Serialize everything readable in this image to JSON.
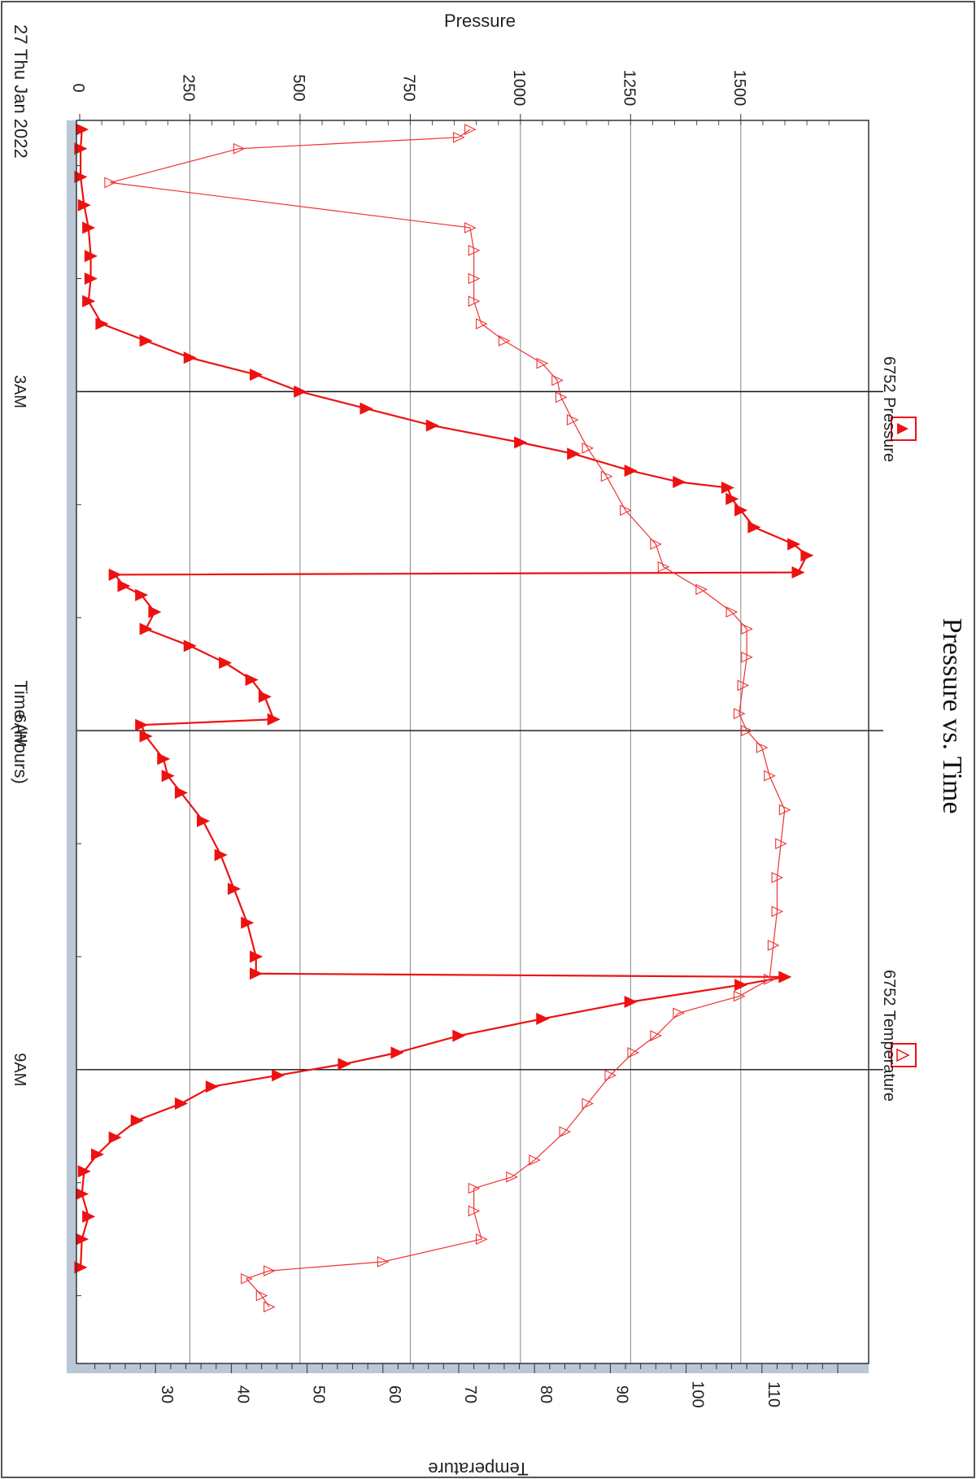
{
  "chart_data": {
    "type": "line",
    "orientation": "rotated-90-clockwise",
    "title": "Pressure vs. Time",
    "date_label": "27 Thu Jan 2022",
    "xlabel": "Time (Hours)",
    "ylabel_left": "Pressure",
    "ylabel_right": "Temperature",
    "x_unit": "hours after midnight, 27 Jan 2022",
    "xlim": [
      0.6,
      11.6
    ],
    "x_ticks": [
      {
        "label": "3AM",
        "value": 3
      },
      {
        "label": "6AM",
        "value": 6
      },
      {
        "label": "9AM",
        "value": 9
      }
    ],
    "pressure_axis": {
      "ylim": [
        0,
        1720
      ],
      "ticks": [
        0,
        250,
        500,
        750,
        1000,
        1250,
        1500
      ]
    },
    "temperature_axis": {
      "ylim": [
        20,
        120
      ],
      "ticks": [
        30,
        40,
        50,
        60,
        70,
        80,
        90,
        100,
        110
      ]
    },
    "grid": true,
    "legend": [
      "6752 Pressure",
      "6752 Temperature"
    ],
    "series": [
      {
        "name": "6752 Pressure",
        "axis": "pressure",
        "marker": "filled-triangle",
        "color": "#ee1111",
        "points": [
          [
            0.68,
            5
          ],
          [
            0.85,
            2
          ],
          [
            1.1,
            2
          ],
          [
            1.35,
            10
          ],
          [
            1.55,
            20
          ],
          [
            1.8,
            25
          ],
          [
            2.0,
            25
          ],
          [
            2.2,
            20
          ],
          [
            2.4,
            50
          ],
          [
            2.55,
            150
          ],
          [
            2.7,
            250
          ],
          [
            2.85,
            400
          ],
          [
            3.0,
            500
          ],
          [
            3.15,
            650
          ],
          [
            3.3,
            800
          ],
          [
            3.45,
            1000
          ],
          [
            3.55,
            1120
          ],
          [
            3.7,
            1250
          ],
          [
            3.8,
            1360
          ],
          [
            3.85,
            1470
          ],
          [
            3.95,
            1480
          ],
          [
            4.05,
            1500
          ],
          [
            4.2,
            1530
          ],
          [
            4.35,
            1620
          ],
          [
            4.45,
            1650
          ],
          [
            4.6,
            1630
          ],
          [
            4.62,
            80
          ],
          [
            4.72,
            100
          ],
          [
            4.8,
            140
          ],
          [
            4.95,
            170
          ],
          [
            5.1,
            150
          ],
          [
            5.25,
            250
          ],
          [
            5.4,
            330
          ],
          [
            5.55,
            390
          ],
          [
            5.7,
            420
          ],
          [
            5.9,
            440
          ],
          [
            5.95,
            140
          ],
          [
            6.05,
            150
          ],
          [
            6.25,
            190
          ],
          [
            6.4,
            200
          ],
          [
            6.55,
            230
          ],
          [
            6.8,
            280
          ],
          [
            7.1,
            320
          ],
          [
            7.4,
            350
          ],
          [
            7.7,
            380
          ],
          [
            8.0,
            400
          ],
          [
            8.15,
            400
          ],
          [
            8.18,
            1600
          ],
          [
            8.25,
            1500
          ],
          [
            8.4,
            1250
          ],
          [
            8.55,
            1050
          ],
          [
            8.7,
            860
          ],
          [
            8.85,
            720
          ],
          [
            8.95,
            600
          ],
          [
            9.05,
            450
          ],
          [
            9.15,
            300
          ],
          [
            9.3,
            230
          ],
          [
            9.45,
            130
          ],
          [
            9.6,
            80
          ],
          [
            9.75,
            40
          ],
          [
            9.9,
            10
          ],
          [
            10.1,
            5
          ],
          [
            10.3,
            20
          ],
          [
            10.5,
            5
          ],
          [
            10.75,
            2
          ]
        ]
      },
      {
        "name": "6752 Temperature",
        "axis": "temperature",
        "marker": "open-triangle",
        "color": "#ee3333",
        "points": [
          [
            0.68,
            71.5
          ],
          [
            0.75,
            70
          ],
          [
            0.85,
            41
          ],
          [
            1.15,
            24
          ],
          [
            1.55,
            71.5
          ],
          [
            1.75,
            72
          ],
          [
            2.0,
            72
          ],
          [
            2.2,
            72
          ],
          [
            2.4,
            73
          ],
          [
            2.55,
            76
          ],
          [
            2.75,
            81
          ],
          [
            2.9,
            83
          ],
          [
            3.05,
            83.5
          ],
          [
            3.25,
            85
          ],
          [
            3.5,
            87
          ],
          [
            3.75,
            89.5
          ],
          [
            4.05,
            92
          ],
          [
            4.35,
            96
          ],
          [
            4.55,
            97
          ],
          [
            4.75,
            102
          ],
          [
            4.95,
            106
          ],
          [
            5.1,
            108
          ],
          [
            5.35,
            108
          ],
          [
            5.6,
            107.5
          ],
          [
            5.85,
            107
          ],
          [
            6.0,
            108
          ],
          [
            6.15,
            110
          ],
          [
            6.4,
            111
          ],
          [
            6.7,
            113
          ],
          [
            7.0,
            112.5
          ],
          [
            7.3,
            112
          ],
          [
            7.6,
            112
          ],
          [
            7.9,
            111.5
          ],
          [
            8.2,
            111
          ],
          [
            8.35,
            107
          ],
          [
            8.5,
            99
          ],
          [
            8.7,
            96
          ],
          [
            8.85,
            93
          ],
          [
            9.05,
            90
          ],
          [
            9.3,
            87
          ],
          [
            9.55,
            84
          ],
          [
            9.8,
            80
          ],
          [
            9.95,
            77
          ],
          [
            10.05,
            72
          ],
          [
            10.25,
            72
          ],
          [
            10.5,
            73
          ],
          [
            10.7,
            60
          ],
          [
            10.78,
            45
          ],
          [
            10.85,
            42
          ],
          [
            11.0,
            44
          ],
          [
            11.1,
            45
          ]
        ]
      }
    ]
  }
}
